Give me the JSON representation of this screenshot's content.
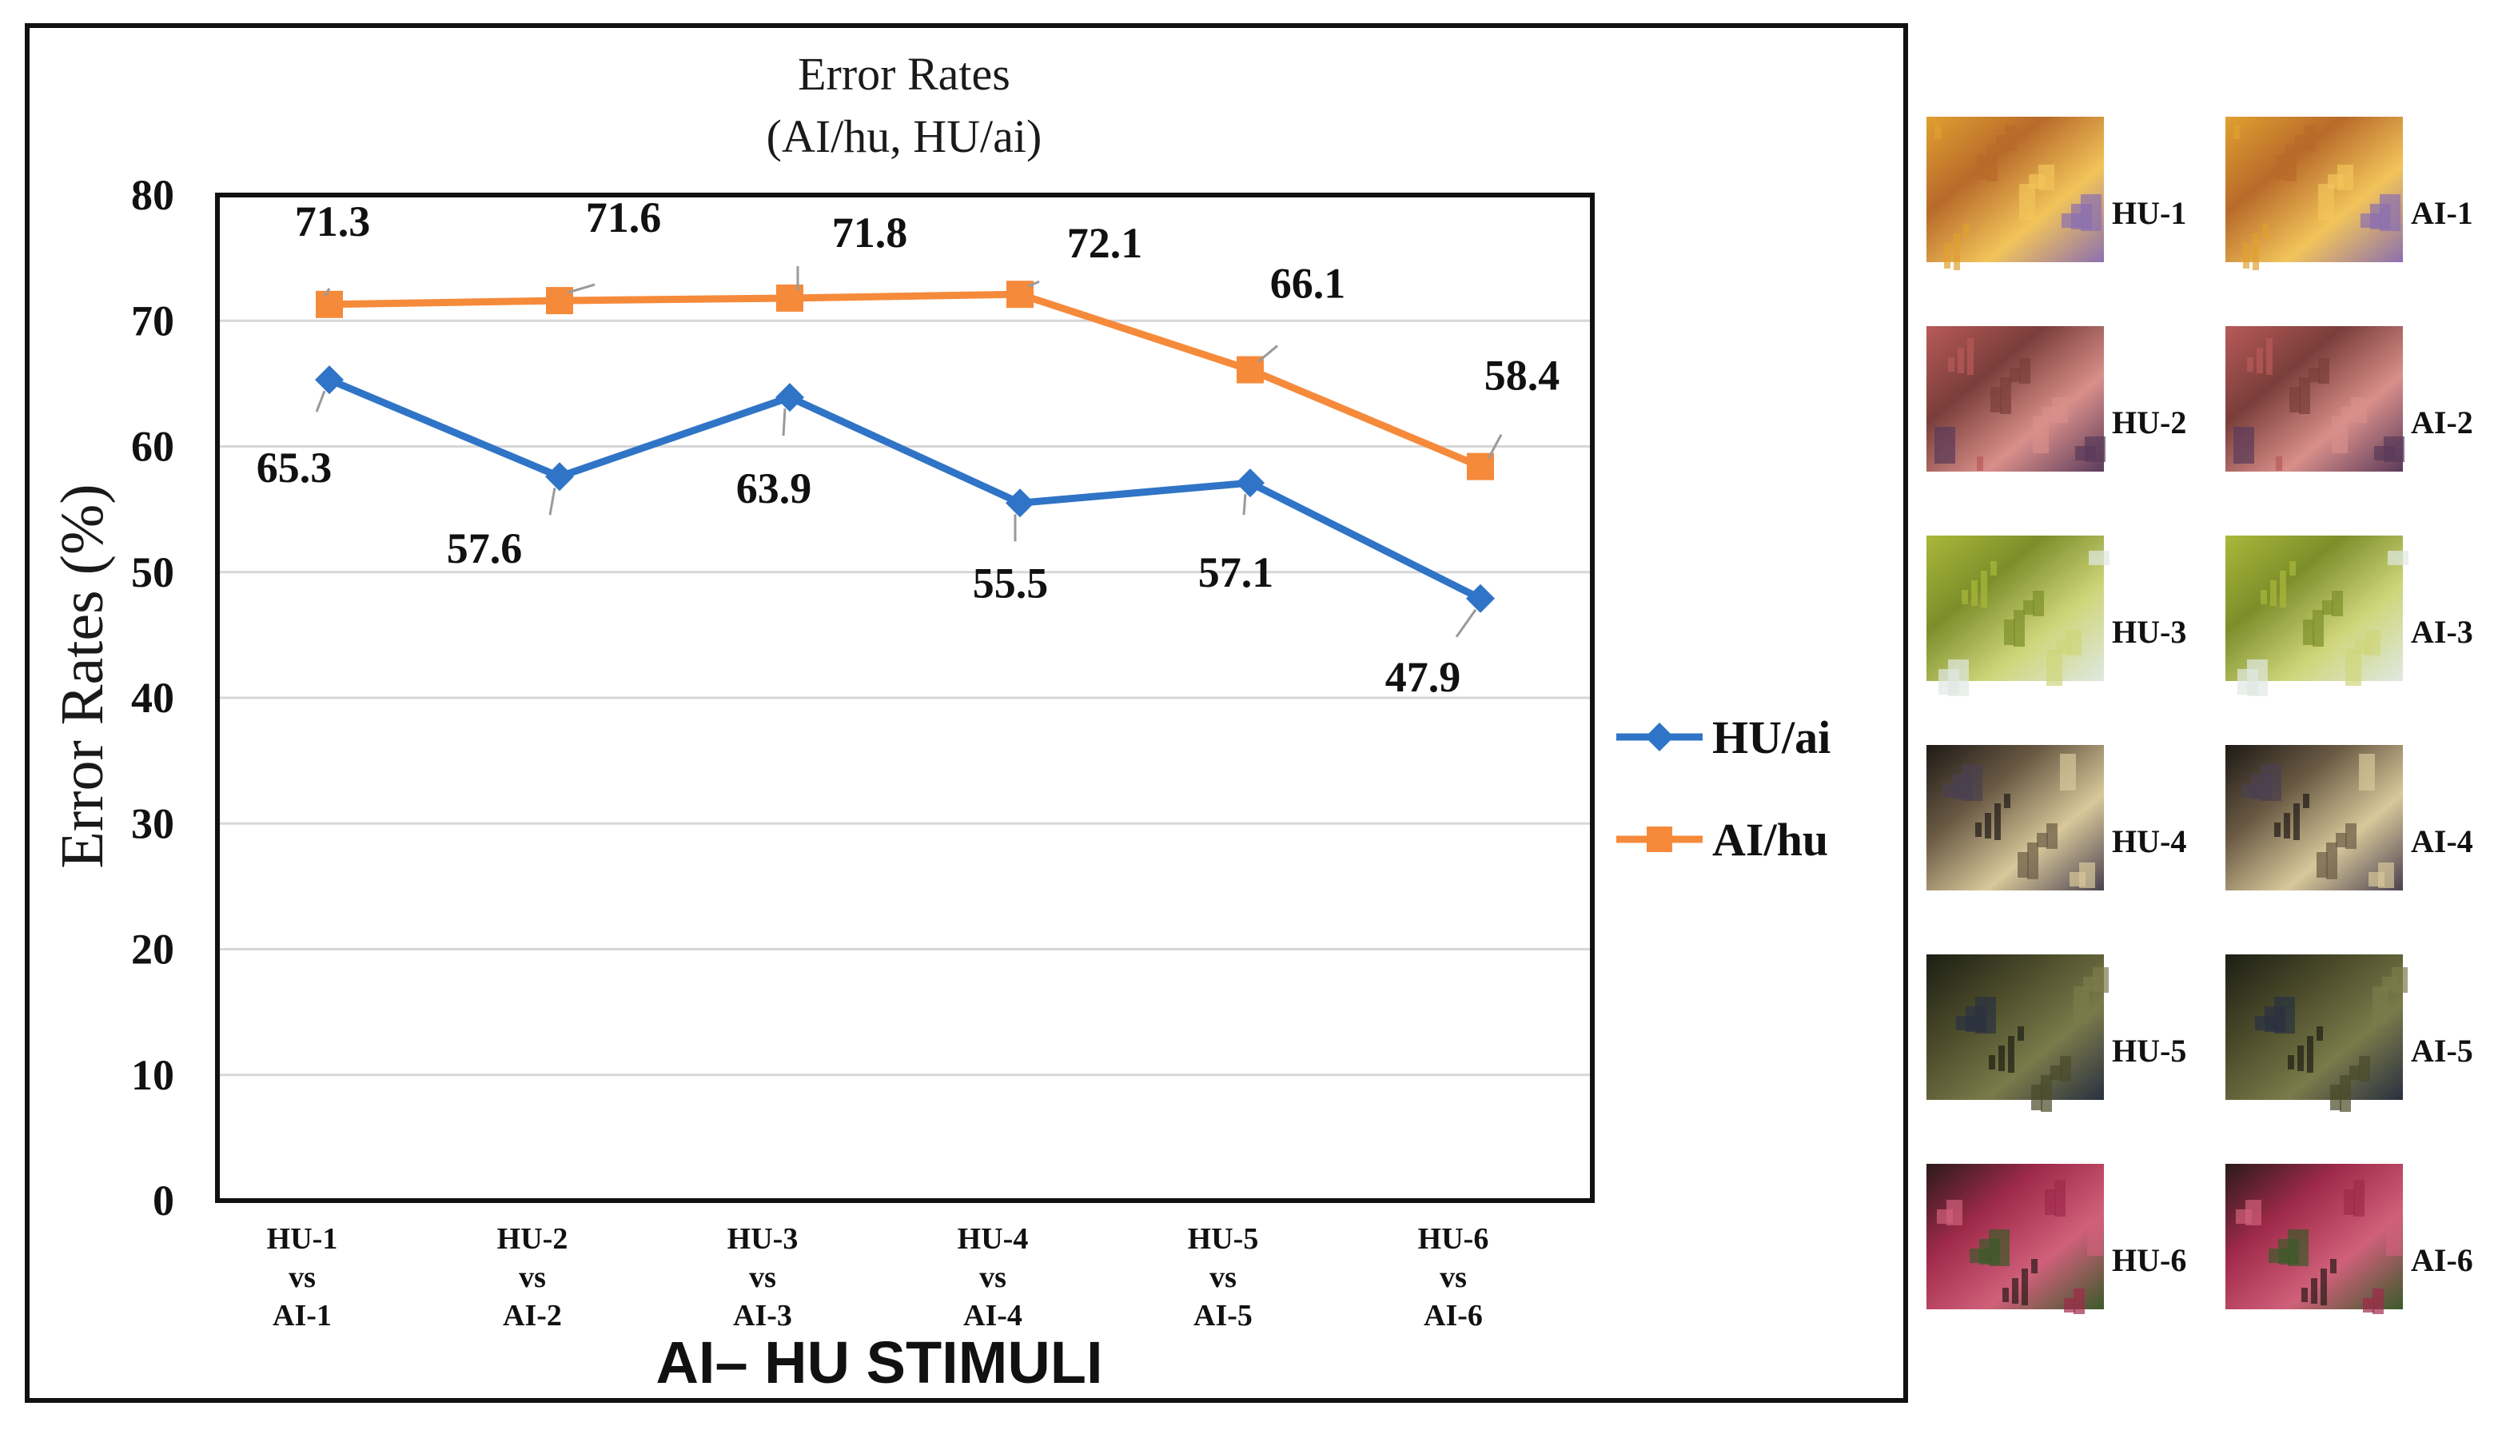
{
  "chart_data": {
    "type": "line",
    "title": "Error Rates",
    "subtitle": "(AI/hu, HU/ai)",
    "ylabel": "Error Rates (%)",
    "xlabel": "AI– HU STIMULI",
    "ylim": [
      0,
      80
    ],
    "yticks": [
      "0",
      "10",
      "20",
      "30",
      "40",
      "50",
      "60",
      "70",
      "80"
    ],
    "grid": true,
    "legend_position": "right",
    "categories": [
      [
        "HU-1",
        "vs",
        "AI-1"
      ],
      [
        "HU-2",
        "vs",
        "AI-2"
      ],
      [
        "HU-3",
        "vs",
        "AI-3"
      ],
      [
        "HU-4",
        "vs",
        "AI-4"
      ],
      [
        "HU-5",
        "vs",
        "AI-5"
      ],
      [
        "HU-6",
        "vs",
        "AI-6"
      ]
    ],
    "series": [
      {
        "name": "HU/ai",
        "values": [
          65.3,
          57.6,
          63.9,
          55.5,
          57.1,
          47.9
        ],
        "labels": [
          "65.3",
          "57.6",
          "63.9",
          "55.5",
          "57.1",
          "47.9"
        ],
        "color": "#2f74c6",
        "marker": "diamond"
      },
      {
        "name": "AI/hu",
        "values": [
          71.3,
          71.6,
          71.8,
          72.1,
          66.1,
          58.4
        ],
        "labels": [
          "71.3",
          "71.6",
          "71.8",
          "72.1",
          "66.1",
          "58.4"
        ],
        "color": "#f58a3b",
        "marker": "square"
      }
    ]
  },
  "thumbnails": {
    "rows": [
      {
        "hu": "HU-1",
        "ai": "AI-1",
        "palette": [
          "#e0a030",
          "#b86a2a",
          "#f2c45a",
          "#8c6fb0"
        ]
      },
      {
        "hu": "HU-2",
        "ai": "AI-2",
        "palette": [
          "#b85a5a",
          "#7a3e3a",
          "#d98f8a",
          "#5a3a5a"
        ]
      },
      {
        "hu": "HU-3",
        "ai": "AI-3",
        "palette": [
          "#a9b83a",
          "#7c8e2a",
          "#cfd67a",
          "#dfe8e2"
        ]
      },
      {
        "hu": "HU-4",
        "ai": "AI-4",
        "palette": [
          "#1e1a16",
          "#6a5a44",
          "#d8c89a",
          "#4a4050"
        ]
      },
      {
        "hu": "HU-5",
        "ai": "AI-5",
        "palette": [
          "#1c1e14",
          "#4a4a2a",
          "#7a7a4a",
          "#2a3040"
        ]
      },
      {
        "hu": "HU-6",
        "ai": "AI-6",
        "palette": [
          "#2a1a1a",
          "#a02a4a",
          "#d0607a",
          "#3a5a2a"
        ]
      }
    ]
  }
}
